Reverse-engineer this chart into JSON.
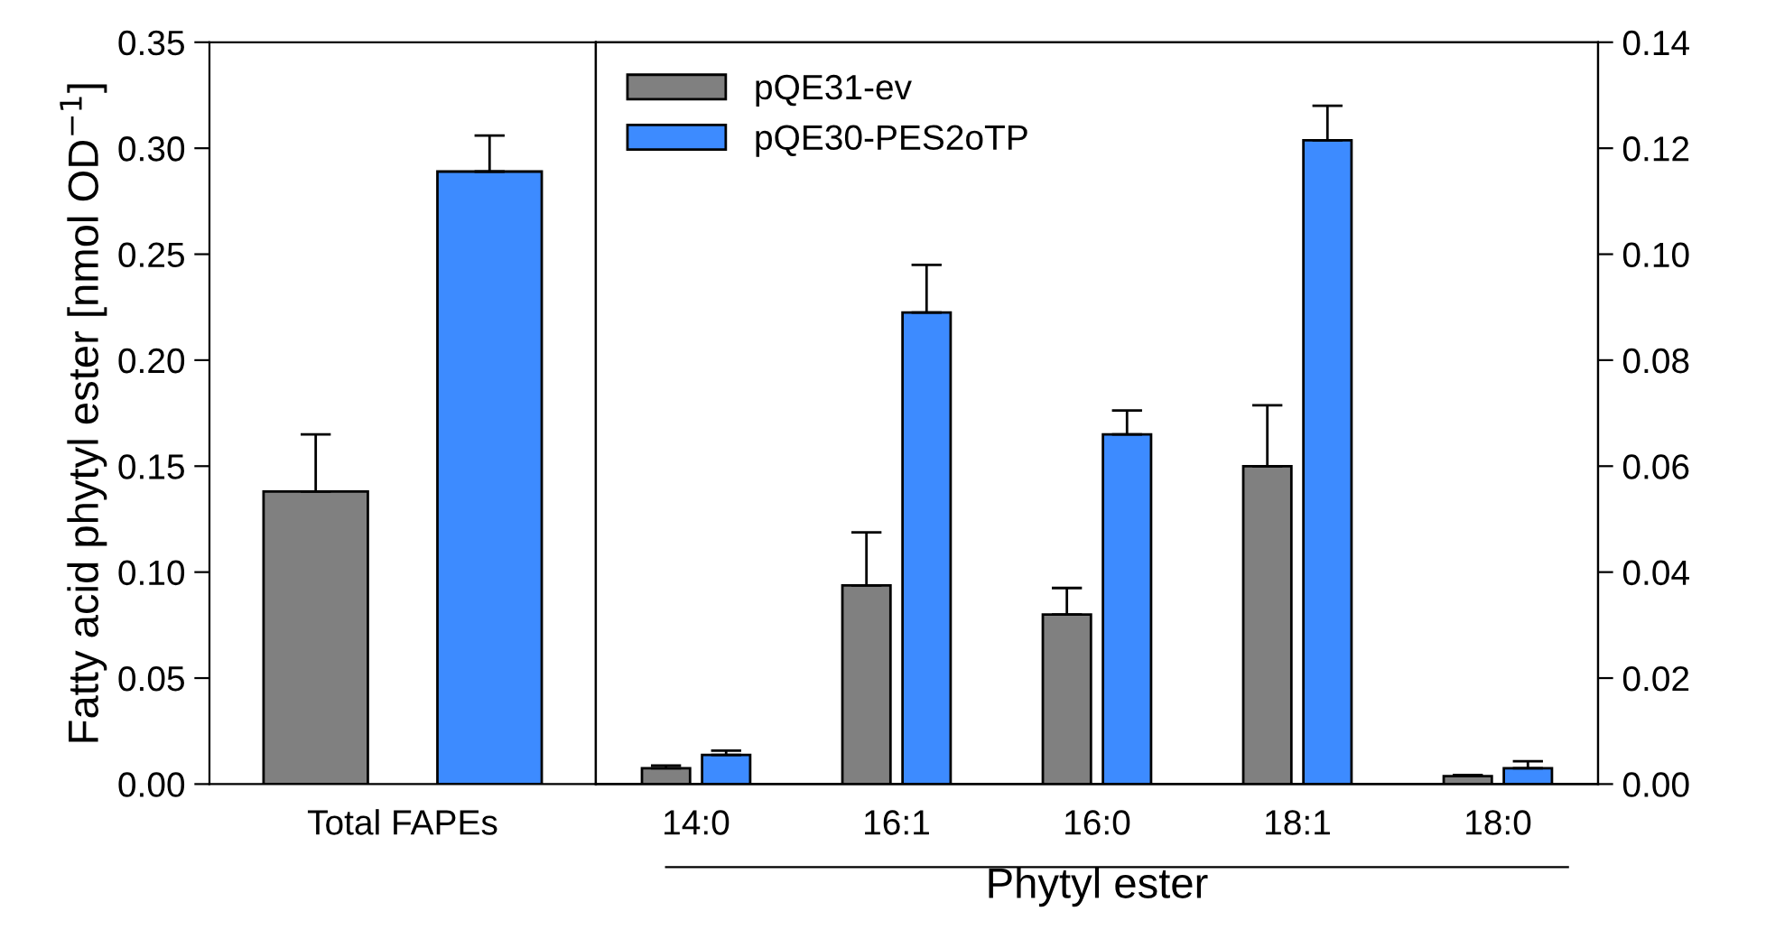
{
  "chart_data": [
    {
      "type": "bar",
      "ylabel": "Fatty acid phytyl ester [nmol OD$^{−1}$]",
      "categories": [
        "Total FAPEs"
      ],
      "ylim": [
        0,
        0.35
      ],
      "yticks": [
        {
          "value": 0,
          "label": "0.00"
        },
        {
          "value": 0.05,
          "label": "0.05"
        },
        {
          "value": 0.1,
          "label": "0.10"
        },
        {
          "value": 0.15,
          "label": "0.15"
        },
        {
          "value": 0.2,
          "label": "0.20"
        },
        {
          "value": 0.25,
          "label": "0.25"
        },
        {
          "value": 0.3,
          "label": "0.30"
        },
        {
          "value": 0.35,
          "label": "0.35"
        }
      ],
      "series": [
        {
          "color": "#808080",
          "values": [
            0.138
          ],
          "errors": [
            [
              0.138,
              0.165
            ]
          ]
        },
        {
          "color": "#3d8bff",
          "values": [
            0.289
          ],
          "errors": [
            [
              0.289,
              0.306
            ]
          ]
        }
      ]
    },
    {
      "type": "bar",
      "xlabel": "Phytyl ester",
      "categories": [
        "14:0",
        "16:1",
        "16:0",
        "18:1",
        "18:0"
      ],
      "y2lim": [
        0,
        0.14
      ],
      "y2ticks": [
        {
          "value": 0,
          "label": "0.00"
        },
        {
          "value": 0.02,
          "label": "0.02"
        },
        {
          "value": 0.04,
          "label": "0.04"
        },
        {
          "value": 0.06,
          "label": "0.06"
        },
        {
          "value": 0.08,
          "label": "0.08"
        },
        {
          "value": 0.1,
          "label": "0.10"
        },
        {
          "value": 0.12,
          "label": "0.12"
        },
        {
          "value": 0.14,
          "label": "0.14"
        }
      ],
      "legend": "top left",
      "series": [
        {
          "name": "pQE31-ev",
          "color": "#808080",
          "axis": "y2",
          "values": [
            0.003,
            0.0375,
            0.032,
            0.06,
            0.0015
          ],
          "errors": [
            [
              0.003,
              0.0035
            ],
            [
              0.0375,
              0.0475
            ],
            [
              0.032,
              0.037
            ],
            [
              0.06,
              0.0715
            ],
            [
              0.0015,
              0.0017
            ]
          ]
        },
        {
          "name": "pQE30-PES2oTP",
          "color": "#3d8bff",
          "axis": "y2",
          "values": [
            0.0055,
            0.089,
            0.066,
            0.1215,
            0.003
          ],
          "errors": [
            [
              0.0055,
              0.0063
            ],
            [
              0.089,
              0.098
            ],
            [
              0.066,
              0.0705
            ],
            [
              0.1215,
              0.128
            ],
            [
              0.003,
              0.0043
            ]
          ]
        }
      ]
    }
  ]
}
